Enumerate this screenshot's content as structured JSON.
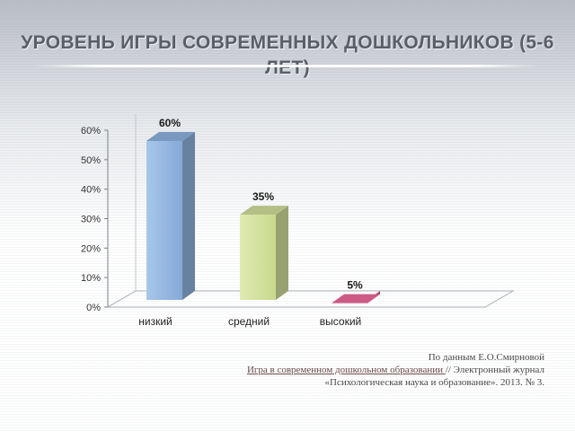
{
  "title": "Уровень игры современных дошкольников (5-6 лет)",
  "colors": {
    "bar_low": "#8fb4df",
    "bar_mid": "#d3e19c",
    "bar_high": "#f06a9c",
    "title": "#5a5e66"
  },
  "citation": {
    "line1": "По данным Е.О.Смирновой",
    "link_text": "Игра в современном дошкольном образовании ",
    "line2_rest": "// Электронный журнал",
    "line3": "«Психологическая наука и образование». 2013. № 3."
  },
  "chart_data": {
    "type": "bar",
    "categories": [
      "низкий",
      "средний",
      "высокий"
    ],
    "values": [
      60,
      35,
      5
    ],
    "data_labels": [
      "60%",
      "35%",
      "5%"
    ],
    "yticks": [
      "0%",
      "10%",
      "20%",
      "30%",
      "40%",
      "50%",
      "60%"
    ],
    "ylim": [
      0,
      60
    ],
    "grid": false,
    "legend": "none",
    "style": "3d-column"
  }
}
